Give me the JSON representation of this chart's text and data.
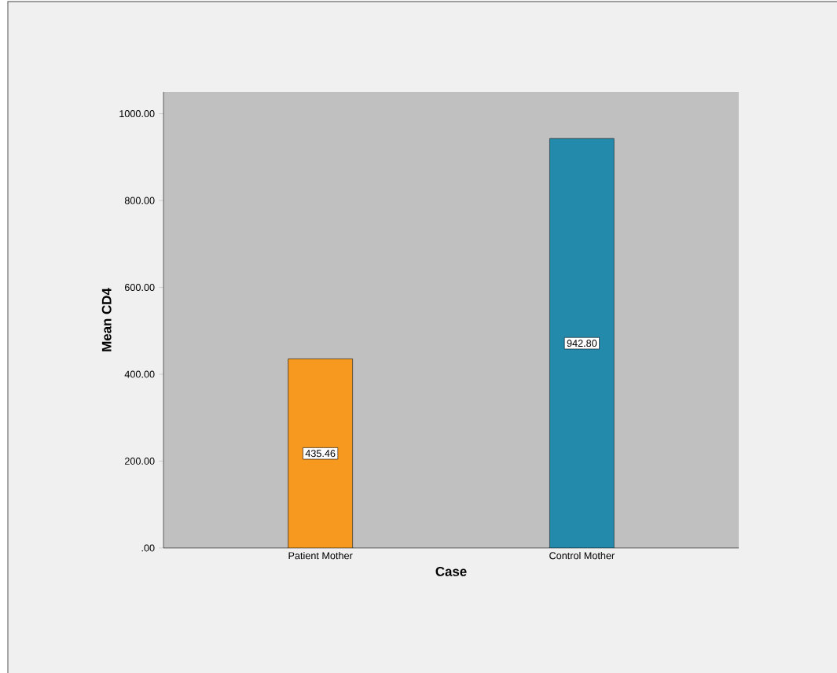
{
  "chart_data": {
    "type": "bar",
    "xlabel": "Case",
    "ylabel": "Mean CD4",
    "categories": [
      "Patient Mother",
      "Control Mother"
    ],
    "values": [
      435.46,
      942.8
    ],
    "colors": [
      "#f7991f",
      "#238aac"
    ],
    "value_labels": [
      "435.46",
      "942.80"
    ],
    "ylim": [
      0,
      1050
    ],
    "yticks": [
      {
        "value": 0,
        "label": ".00"
      },
      {
        "value": 200,
        "label": "200.00"
      },
      {
        "value": 400,
        "label": "400.00"
      },
      {
        "value": 600,
        "label": "600.00"
      },
      {
        "value": 800,
        "label": "800.00"
      },
      {
        "value": 1000,
        "label": "1000.00"
      }
    ],
    "grid": false
  }
}
